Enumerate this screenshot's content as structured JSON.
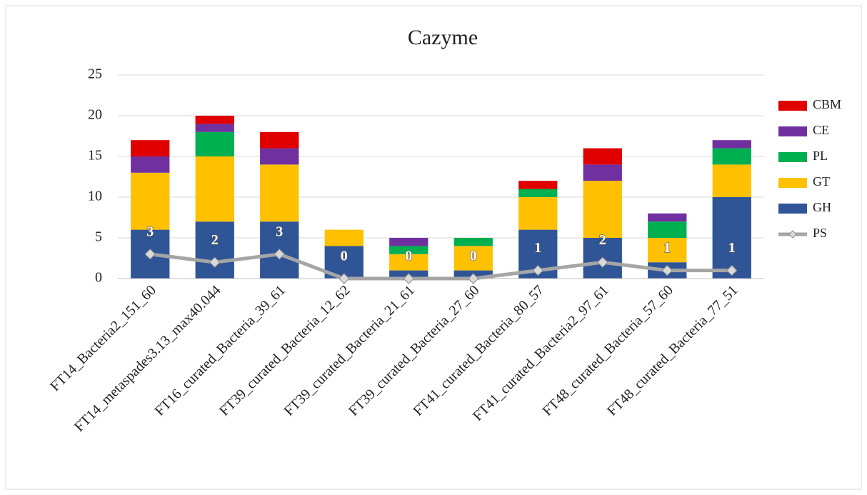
{
  "chart_data": {
    "type": "bar",
    "stacked": true,
    "title": "Cazyme",
    "categories": [
      "FT14_Bacteria2_151_60",
      "FT14_metaspades3.13_max40.044",
      "FT16_curated_Bacteria_39_61",
      "FT39_curated_Bacteria_12_62",
      "FT39_curated_Bacteria_21_61",
      "FT39_curated_Bacteria_27_60",
      "FT41_curated_Bacteria_80_57",
      "FT41_curated_Bacteria2_97_61",
      "FT48_curated_Bacteria_57_60",
      "FT48_curated_Bacteria_77_51"
    ],
    "series": [
      {
        "name": "GH",
        "color": "#2f5597",
        "values": [
          6,
          7,
          7,
          4,
          1,
          1,
          6,
          5,
          2,
          10
        ]
      },
      {
        "name": "GT",
        "color": "#ffc000",
        "values": [
          7,
          8,
          7,
          2,
          2,
          3,
          4,
          7,
          3,
          4
        ]
      },
      {
        "name": "PL",
        "color": "#00b050",
        "values": [
          0,
          3,
          0,
          0,
          1,
          1,
          1,
          0,
          2,
          2
        ]
      },
      {
        "name": "CE",
        "color": "#7030a0",
        "values": [
          2,
          1,
          2,
          0,
          1,
          0,
          0,
          2,
          1,
          1
        ]
      },
      {
        "name": "CBM",
        "color": "#e00000",
        "values": [
          2,
          1,
          2,
          0,
          0,
          0,
          1,
          2,
          0,
          0
        ]
      },
      {
        "name": "PS",
        "type": "line",
        "color": "#a5a5a5",
        "data_labels": true,
        "values": [
          3,
          2,
          3,
          0,
          0,
          0,
          1,
          2,
          1,
          1
        ]
      }
    ],
    "ylim": [
      0,
      25
    ],
    "yticks": [
      0,
      5,
      10,
      15,
      20,
      25
    ],
    "grid": true,
    "legend": "right"
  }
}
